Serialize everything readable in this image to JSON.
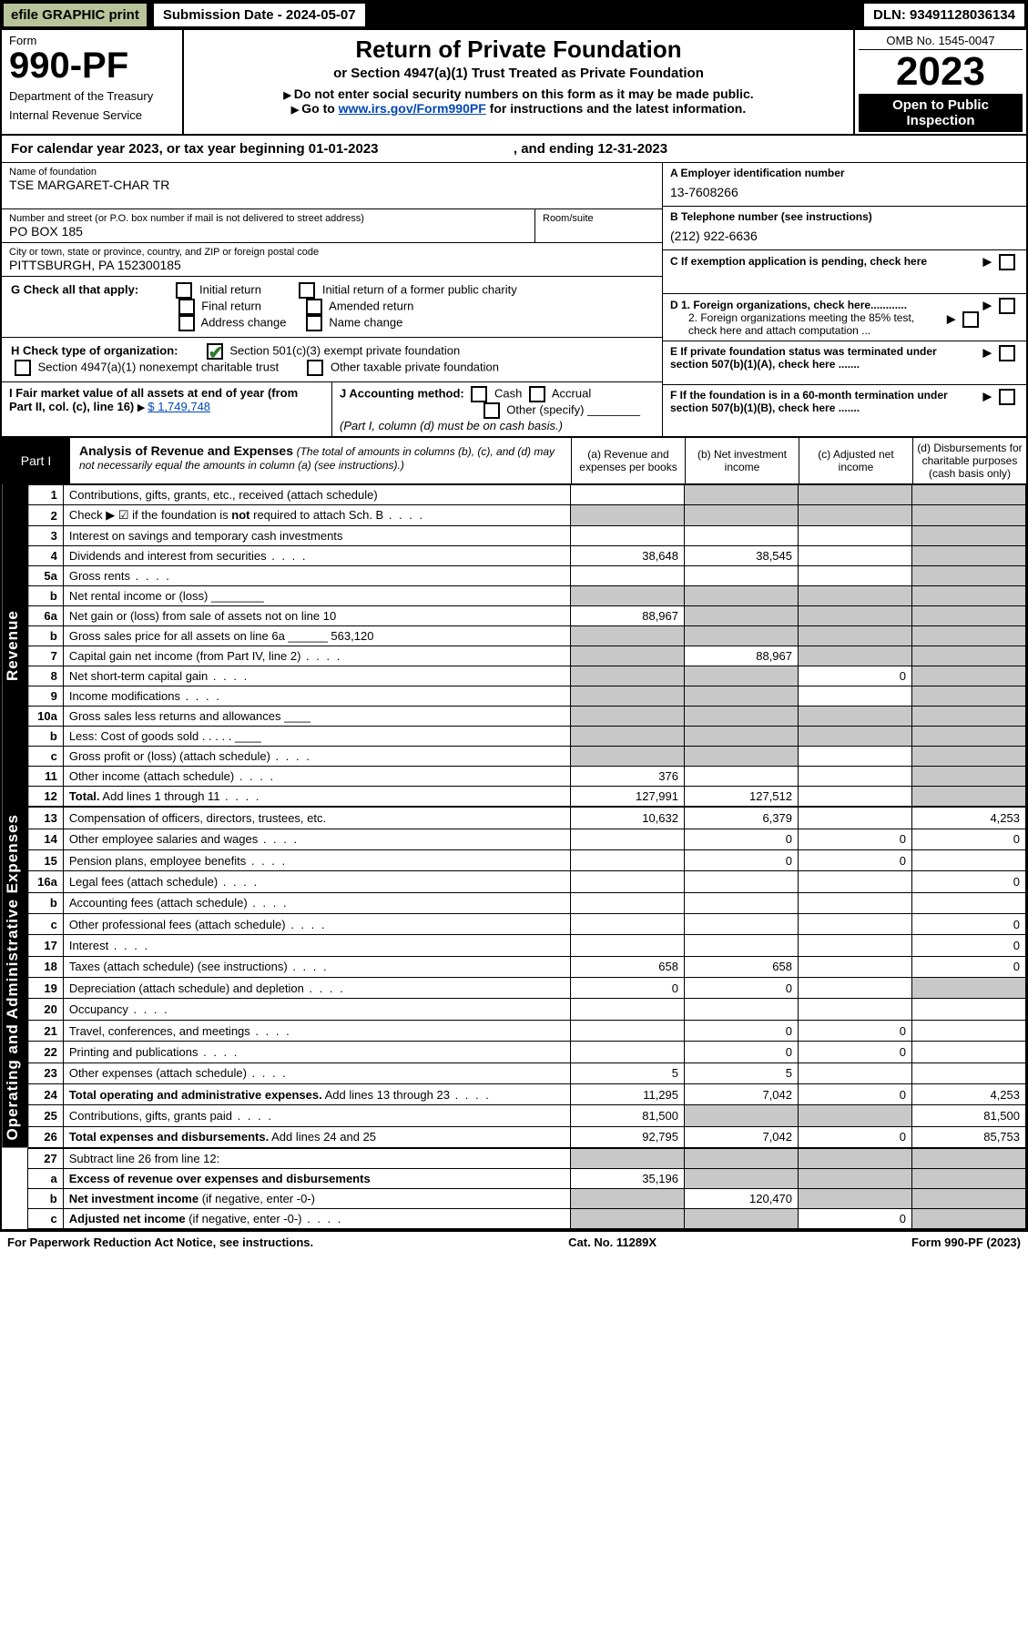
{
  "topbar": {
    "efile": "efile GRAPHIC print",
    "submission": "Submission Date - 2024-05-07",
    "dln": "DLN: 93491128036134"
  },
  "header": {
    "form_label": "Form",
    "form_number": "990-PF",
    "dept1": "Department of the Treasury",
    "dept2": "Internal Revenue Service",
    "title": "Return of Private Foundation",
    "subtitle": "or Section 4947(a)(1) Trust Treated as Private Foundation",
    "instr1": "Do not enter social security numbers on this form as it may be made public.",
    "instr2_pre": "Go to ",
    "instr2_link": "www.irs.gov/Form990PF",
    "instr2_post": " for instructions and the latest information.",
    "omb": "OMB No. 1545-0047",
    "year": "2023",
    "open_public": "Open to Public Inspection"
  },
  "cal_year": "For calendar year 2023, or tax year beginning 01-01-2023",
  "cal_year_end": ", and ending 12-31-2023",
  "foundation": {
    "name_label": "Name of foundation",
    "name": "TSE MARGARET-CHAR TR",
    "addr_label": "Number and street (or P.O. box number if mail is not delivered to street address)",
    "addr": "PO BOX 185",
    "room_label": "Room/suite",
    "city_label": "City or town, state or province, country, and ZIP or foreign postal code",
    "city": "PITTSBURGH, PA  152300185"
  },
  "right_info": {
    "a_label": "A Employer identification number",
    "a_val": "13-7608266",
    "b_label": "B Telephone number (see instructions)",
    "b_val": "(212) 922-6636",
    "c_label": "C If exemption application is pending, check here",
    "d1_label": "D 1. Foreign organizations, check here............",
    "d2_label": "2. Foreign organizations meeting the 85% test, check here and attach computation ...",
    "e_label": "E  If private foundation status was terminated under section 507(b)(1)(A), check here .......",
    "f_label": "F  If the foundation is in a 60-month termination under section 507(b)(1)(B), check here ......."
  },
  "g": {
    "label": "G Check all that apply:",
    "opts": [
      "Initial return",
      "Final return",
      "Address change",
      "Initial return of a former public charity",
      "Amended return",
      "Name change"
    ]
  },
  "h": {
    "label": "H Check type of organization:",
    "opt1": "Section 501(c)(3) exempt private foundation",
    "opt2": "Section 4947(a)(1) nonexempt charitable trust",
    "opt3": "Other taxable private foundation"
  },
  "i": {
    "label": "I Fair market value of all assets at end of year (from Part II, col. (c), line 16)",
    "val": "$  1,749,748"
  },
  "j": {
    "label": "J Accounting method:",
    "cash": "Cash",
    "accrual": "Accrual",
    "other": "Other (specify)",
    "note": "(Part I, column (d) must be on cash basis.)"
  },
  "part1": {
    "label": "Part I",
    "title": "Analysis of Revenue and Expenses",
    "title_note": "(The total of amounts in columns (b), (c), and (d) may not necessarily equal the amounts in column (a) (see instructions).)",
    "col_a": "(a)   Revenue and expenses per books",
    "col_b": "(b)   Net investment income",
    "col_c": "(c)   Adjusted net income",
    "col_d": "(d)   Disbursements for charitable purposes (cash basis only)"
  },
  "vert": {
    "revenue": "Revenue",
    "expenses": "Operating and Administrative Expenses"
  },
  "rows": [
    {
      "n": "1",
      "desc": "Contributions, gifts, grants, etc., received (attach schedule)",
      "a": "",
      "b": "shade",
      "c": "shade",
      "d": "shade"
    },
    {
      "n": "2",
      "desc": "Check ▶ ☑ if the foundation is <b>not</b> required to attach Sch. B",
      "a": "shade",
      "b": "shade",
      "c": "shade",
      "d": "shade",
      "dots": true
    },
    {
      "n": "3",
      "desc": "Interest on savings and temporary cash investments",
      "a": "",
      "b": "",
      "c": "",
      "d": "shade"
    },
    {
      "n": "4",
      "desc": "Dividends and interest from securities",
      "a": "38,648",
      "b": "38,545",
      "c": "",
      "d": "shade",
      "dots": true
    },
    {
      "n": "5a",
      "desc": "Gross rents",
      "a": "",
      "b": "",
      "c": "",
      "d": "shade",
      "dots": true
    },
    {
      "n": "b",
      "desc": "Net rental income or (loss)  ________",
      "a": "shade",
      "b": "shade",
      "c": "shade",
      "d": "shade"
    },
    {
      "n": "6a",
      "desc": "Net gain or (loss) from sale of assets not on line 10",
      "a": "88,967",
      "b": "shade",
      "c": "shade",
      "d": "shade"
    },
    {
      "n": "b",
      "desc": "Gross sales price for all assets on line 6a ______ 563,120",
      "a": "shade",
      "b": "shade",
      "c": "shade",
      "d": "shade"
    },
    {
      "n": "7",
      "desc": "Capital gain net income (from Part IV, line 2)",
      "a": "shade",
      "b": "88,967",
      "c": "shade",
      "d": "shade",
      "dots": true
    },
    {
      "n": "8",
      "desc": "Net short-term capital gain",
      "a": "shade",
      "b": "shade",
      "c": "0",
      "d": "shade",
      "dots": true
    },
    {
      "n": "9",
      "desc": "Income modifications",
      "a": "shade",
      "b": "shade",
      "c": "",
      "d": "shade",
      "dots": true
    },
    {
      "n": "10a",
      "desc": "Gross sales less returns and allowances  ____",
      "a": "shade",
      "b": "shade",
      "c": "shade",
      "d": "shade"
    },
    {
      "n": "b",
      "desc": "Less: Cost of goods sold      .  .  .  .  .   ____",
      "a": "shade",
      "b": "shade",
      "c": "shade",
      "d": "shade"
    },
    {
      "n": "c",
      "desc": "Gross profit or (loss) (attach schedule)",
      "a": "shade",
      "b": "shade",
      "c": "",
      "d": "shade",
      "dots": true
    },
    {
      "n": "11",
      "desc": "Other income (attach schedule)",
      "a": "376",
      "b": "",
      "c": "",
      "d": "shade",
      "dots": true
    },
    {
      "n": "12",
      "desc": "<b>Total.</b> Add lines 1 through 11",
      "a": "127,991",
      "b": "127,512",
      "c": "",
      "d": "shade",
      "dots": true
    }
  ],
  "exp_rows": [
    {
      "n": "13",
      "desc": "Compensation of officers, directors, trustees, etc.",
      "a": "10,632",
      "b": "6,379",
      "c": "",
      "d": "4,253"
    },
    {
      "n": "14",
      "desc": "Other employee salaries and wages",
      "a": "",
      "b": "0",
      "c": "0",
      "d": "0",
      "dots": true
    },
    {
      "n": "15",
      "desc": "Pension plans, employee benefits",
      "a": "",
      "b": "0",
      "c": "0",
      "d": "",
      "dots": true
    },
    {
      "n": "16a",
      "desc": "Legal fees (attach schedule)",
      "a": "",
      "b": "",
      "c": "",
      "d": "0",
      "dots": true
    },
    {
      "n": "b",
      "desc": "Accounting fees (attach schedule)",
      "a": "",
      "b": "",
      "c": "",
      "d": "",
      "dots": true
    },
    {
      "n": "c",
      "desc": "Other professional fees (attach schedule)",
      "a": "",
      "b": "",
      "c": "",
      "d": "0",
      "dots": true
    },
    {
      "n": "17",
      "desc": "Interest",
      "a": "",
      "b": "",
      "c": "",
      "d": "0",
      "dots": true
    },
    {
      "n": "18",
      "desc": "Taxes (attach schedule) (see instructions)",
      "a": "658",
      "b": "658",
      "c": "",
      "d": "0",
      "dots": true
    },
    {
      "n": "19",
      "desc": "Depreciation (attach schedule) and depletion",
      "a": "0",
      "b": "0",
      "c": "",
      "d": "shade",
      "dots": true
    },
    {
      "n": "20",
      "desc": "Occupancy",
      "a": "",
      "b": "",
      "c": "",
      "d": "",
      "dots": true
    },
    {
      "n": "21",
      "desc": "Travel, conferences, and meetings",
      "a": "",
      "b": "0",
      "c": "0",
      "d": "",
      "dots": true
    },
    {
      "n": "22",
      "desc": "Printing and publications",
      "a": "",
      "b": "0",
      "c": "0",
      "d": "",
      "dots": true
    },
    {
      "n": "23",
      "desc": "Other expenses (attach schedule)",
      "a": "5",
      "b": "5",
      "c": "",
      "d": "",
      "dots": true
    },
    {
      "n": "24",
      "desc": "<b>Total operating and administrative expenses.</b> Add lines 13 through 23",
      "a": "11,295",
      "b": "7,042",
      "c": "0",
      "d": "4,253",
      "dots": true
    },
    {
      "n": "25",
      "desc": "Contributions, gifts, grants paid",
      "a": "81,500",
      "b": "shade",
      "c": "shade",
      "d": "81,500",
      "dots": true
    },
    {
      "n": "26",
      "desc": "<b>Total expenses and disbursements.</b> Add lines 24 and 25",
      "a": "92,795",
      "b": "7,042",
      "c": "0",
      "d": "85,753"
    }
  ],
  "bottom_rows": [
    {
      "n": "27",
      "desc": "Subtract line 26 from line 12:",
      "a": "shade",
      "b": "shade",
      "c": "shade",
      "d": "shade"
    },
    {
      "n": "a",
      "desc": "<b>Excess of revenue over expenses and disbursements</b>",
      "a": "35,196",
      "b": "shade",
      "c": "shade",
      "d": "shade"
    },
    {
      "n": "b",
      "desc": "<b>Net investment income</b> (if negative, enter -0-)",
      "a": "shade",
      "b": "120,470",
      "c": "shade",
      "d": "shade"
    },
    {
      "n": "c",
      "desc": "<b>Adjusted net income</b> (if negative, enter -0-)",
      "a": "shade",
      "b": "shade",
      "c": "0",
      "d": "shade",
      "dots": true
    }
  ],
  "footer": {
    "left": "For Paperwork Reduction Act Notice, see instructions.",
    "center": "Cat. No. 11289X",
    "right": "Form 990-PF (2023)"
  },
  "colors": {
    "efile_bg": "#B8C499",
    "shade_bg": "#c8c8c8",
    "link": "#0047b3",
    "check": "#2b7a2b"
  }
}
